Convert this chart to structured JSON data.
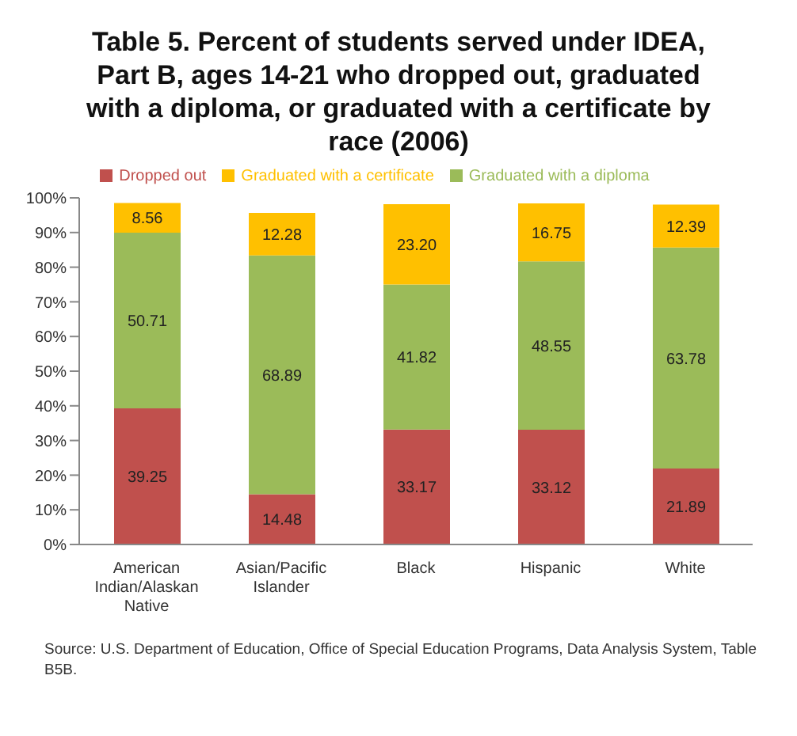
{
  "chart_data": {
    "type": "bar",
    "title": "Table 5. Percent of students served under IDEA, Part B, ages 14-21 who dropped out, graduated with a diploma, or graduated with a certificate by race (2006)",
    "categories": [
      "American Indian/Alaskan Native",
      "Asian/Pacific Islander",
      "Black",
      "Hispanic",
      "White"
    ],
    "stacked": true,
    "series": [
      {
        "name": "Dropped out",
        "color": "#c0504d",
        "values": [
          39.25,
          14.48,
          33.17,
          33.12,
          21.89
        ],
        "value_labels": [
          "39.25",
          "14.48",
          "33.17",
          "33.12",
          "21.89"
        ]
      },
      {
        "name": "Graduated with a diploma",
        "color": "#9bbb59",
        "values": [
          50.71,
          68.89,
          41.82,
          48.55,
          63.78
        ],
        "value_labels": [
          "50.71",
          "68.89",
          "41.82",
          "48.55",
          "63.78"
        ]
      },
      {
        "name": "Graduated with a certificate",
        "color": "#ffc000",
        "values": [
          8.56,
          12.28,
          23.2,
          16.75,
          12.39
        ],
        "value_labels": [
          "8.56",
          "12.28",
          "23.20",
          "16.75",
          "12.39"
        ]
      }
    ],
    "ylim": [
      0,
      100
    ],
    "yticks": [
      {
        "value": 0,
        "label": "0%"
      },
      {
        "value": 10,
        "label": "10%"
      },
      {
        "value": 20,
        "label": "20%"
      },
      {
        "value": 30,
        "label": "30%"
      },
      {
        "value": 40,
        "label": "40%"
      },
      {
        "value": 50,
        "label": "50%"
      },
      {
        "value": 60,
        "label": "60%"
      },
      {
        "value": 70,
        "label": "70%"
      },
      {
        "value": 80,
        "label": "80%"
      },
      {
        "value": 90,
        "label": "90%"
      },
      {
        "value": 100,
        "label": "100%"
      }
    ],
    "grid": false,
    "legend": "top",
    "annotations": [
      "Source: U.S. Department of Education,  Office of Special Education Programs, Data Analysis System, Table B5B."
    ]
  }
}
